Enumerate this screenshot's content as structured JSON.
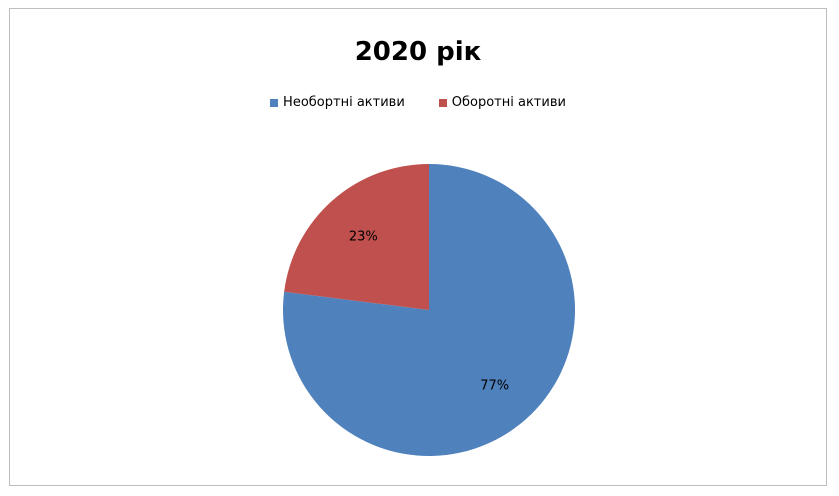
{
  "chart_data": {
    "type": "pie",
    "title": "2020 рік",
    "legend_position": "top",
    "categories": [
      "Необортні активи",
      "Оборотні активи"
    ],
    "values": [
      77,
      23
    ],
    "data_labels": [
      "77%",
      "23%"
    ],
    "colors": [
      "#4f81bd",
      "#c0504d"
    ]
  }
}
